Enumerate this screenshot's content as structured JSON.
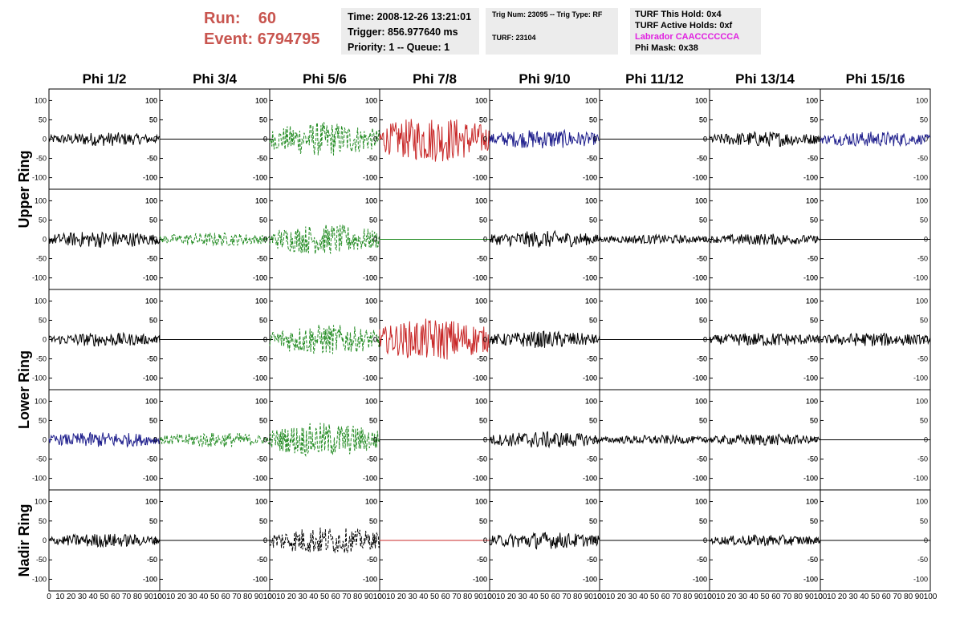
{
  "header": {
    "run_label": "Run:",
    "run_value": "60",
    "event_label": "Event:",
    "event_value": "6794795"
  },
  "info_box1": {
    "time": "Time: 2008-12-26 13:21:01",
    "trigger": "Trigger: 856.977640 ms",
    "priority": "Priority: 1 -- Queue: 1"
  },
  "info_box2": {
    "trig": "Trig Num: 23095 -- Trig Type: RF",
    "turf": "TURF: 23104"
  },
  "info_box3": {
    "this_hold": "TURF This Hold: 0x4",
    "active_holds": "TURF Active Holds: 0xf",
    "labrador": "Labrador CAACCCCCCA",
    "phi_mask": "Phi Mask: 0x38"
  },
  "colors": {
    "red": "#c8554f",
    "magenta": "#e020e0",
    "box_bg": "#ececec"
  },
  "chart_data": {
    "type": "line",
    "columns": [
      "Phi 1/2",
      "Phi 3/4",
      "Phi 5/6",
      "Phi 7/8",
      "Phi 9/10",
      "Phi 11/12",
      "Phi 13/14",
      "Phi 15/16"
    ],
    "rows": [
      "Upper Ring",
      "Upper Ring",
      "Lower Ring",
      "Lower Ring",
      "Nadir Ring"
    ],
    "row_labels": [
      {
        "label": "Upper Ring",
        "rows": [
          0,
          1
        ]
      },
      {
        "label": "Lower Ring",
        "rows": [
          2,
          3
        ]
      },
      {
        "label": "Nadir Ring",
        "rows": [
          4
        ]
      }
    ],
    "ylim": [
      -130,
      130
    ],
    "xlim": [
      0,
      100
    ],
    "yticks": [
      -100,
      -50,
      0,
      50,
      100
    ],
    "x_tick_labels": [
      "0",
      "10",
      "20",
      "30",
      "40",
      "50",
      "60",
      "70",
      "80",
      "90",
      "100"
    ],
    "panels": [
      [
        {
          "color": "#000000",
          "amp": 18,
          "style": "solid",
          "empty": false
        },
        {
          "color": "#000000",
          "amp": 0,
          "style": "solid",
          "empty": true
        },
        {
          "color": "#228b22",
          "amp": 45,
          "style": "dashed",
          "empty": false
        },
        {
          "color": "#c82828",
          "amp": 60,
          "style": "solid",
          "empty": false
        },
        {
          "color": "#1e1e8c",
          "amp": 25,
          "style": "solid",
          "empty": false
        },
        {
          "color": "#000000",
          "amp": 0,
          "style": "solid",
          "empty": true
        },
        {
          "color": "#000000",
          "amp": 20,
          "style": "solid",
          "empty": false
        },
        {
          "color": "#1e1e8c",
          "amp": 20,
          "style": "solid",
          "empty": false
        }
      ],
      [
        {
          "color": "#000000",
          "amp": 22,
          "style": "solid",
          "empty": false
        },
        {
          "color": "#228b22",
          "amp": 18,
          "style": "dashed",
          "empty": false
        },
        {
          "color": "#228b22",
          "amp": 40,
          "style": "dashed",
          "empty": false
        },
        {
          "color": "#228b22",
          "amp": 0,
          "style": "solid",
          "empty": true
        },
        {
          "color": "#000000",
          "amp": 22,
          "style": "solid",
          "empty": false
        },
        {
          "color": "#000000",
          "amp": 12,
          "style": "solid",
          "empty": false
        },
        {
          "color": "#000000",
          "amp": 15,
          "style": "solid",
          "empty": false
        },
        {
          "color": "#000000",
          "amp": 0,
          "style": "solid",
          "empty": true
        }
      ],
      [
        {
          "color": "#000000",
          "amp": 18,
          "style": "solid",
          "empty": false
        },
        {
          "color": "#000000",
          "amp": 0,
          "style": "solid",
          "empty": true
        },
        {
          "color": "#228b22",
          "amp": 40,
          "style": "dashed",
          "empty": false
        },
        {
          "color": "#c82828",
          "amp": 55,
          "style": "solid",
          "empty": false
        },
        {
          "color": "#000000",
          "amp": 22,
          "style": "solid",
          "empty": false
        },
        {
          "color": "#000000",
          "amp": 0,
          "style": "solid",
          "empty": true
        },
        {
          "color": "#000000",
          "amp": 18,
          "style": "solid",
          "empty": false
        },
        {
          "color": "#000000",
          "amp": 18,
          "style": "solid",
          "empty": false
        }
      ],
      [
        {
          "color": "#1e1e8c",
          "amp": 20,
          "style": "solid",
          "empty": false
        },
        {
          "color": "#228b22",
          "amp": 20,
          "style": "dashed",
          "empty": false
        },
        {
          "color": "#228b22",
          "amp": 45,
          "style": "dashed",
          "empty": false
        },
        {
          "color": "#000000",
          "amp": 0,
          "style": "solid",
          "empty": true
        },
        {
          "color": "#000000",
          "amp": 22,
          "style": "solid",
          "empty": false
        },
        {
          "color": "#000000",
          "amp": 12,
          "style": "solid",
          "empty": false
        },
        {
          "color": "#000000",
          "amp": 15,
          "style": "solid",
          "empty": false
        },
        {
          "color": "#000000",
          "amp": 0,
          "style": "solid",
          "empty": true
        }
      ],
      [
        {
          "color": "#000000",
          "amp": 18,
          "style": "solid",
          "empty": false
        },
        {
          "color": "#000000",
          "amp": 0,
          "style": "solid",
          "empty": true
        },
        {
          "color": "#000000",
          "amp": 35,
          "style": "dashed",
          "empty": false
        },
        {
          "color": "#c82828",
          "amp": 0,
          "style": "solid",
          "empty": true
        },
        {
          "color": "#000000",
          "amp": 22,
          "style": "solid",
          "empty": false
        },
        {
          "color": "#000000",
          "amp": 0,
          "style": "solid",
          "empty": true
        },
        {
          "color": "#000000",
          "amp": 15,
          "style": "solid",
          "empty": false
        },
        {
          "color": "#000000",
          "amp": 0,
          "style": "solid",
          "empty": true
        }
      ]
    ]
  }
}
